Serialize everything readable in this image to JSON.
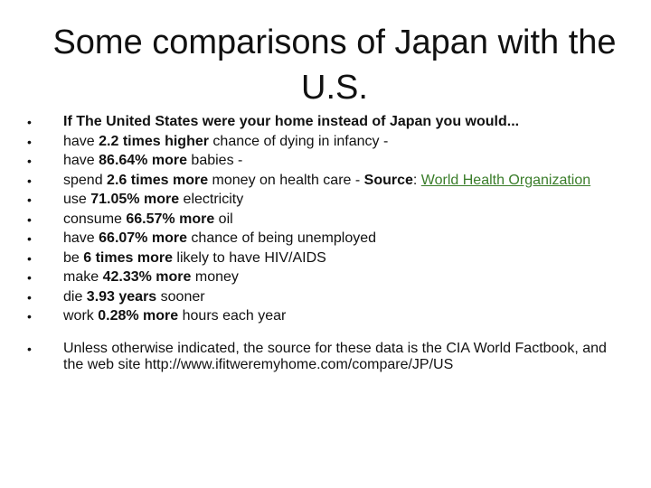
{
  "title": "Some comparisons of Japan with the U.S.",
  "bullets": [
    {
      "parts": [
        {
          "t": "If The United States were your home instead of Japan you would...",
          "b": true
        }
      ]
    },
    {
      "parts": [
        {
          "t": "have "
        },
        {
          "t": "2.2 times higher",
          "b": true
        },
        {
          "t": " chance of dying in infancy -"
        }
      ]
    },
    {
      "parts": [
        {
          "t": "have "
        },
        {
          "t": "86.64% more",
          "b": true
        },
        {
          "t": " babies -"
        }
      ]
    },
    {
      "parts": [
        {
          "t": "spend "
        },
        {
          "t": "2.6 times more",
          "b": true
        },
        {
          "t": " money on health care - "
        },
        {
          "t": "Source",
          "b": true
        },
        {
          "t": ": "
        },
        {
          "t": "World Health Organization",
          "link": true
        }
      ]
    },
    {
      "parts": [
        {
          "t": "use "
        },
        {
          "t": "71.05% more",
          "b": true
        },
        {
          "t": " electricity"
        }
      ]
    },
    {
      "parts": [
        {
          "t": "consume "
        },
        {
          "t": "66.57% more",
          "b": true
        },
        {
          "t": " oil"
        }
      ]
    },
    {
      "parts": [
        {
          "t": "have "
        },
        {
          "t": "66.07% more",
          "b": true
        },
        {
          "t": " chance of being unemployed"
        }
      ]
    },
    {
      "parts": [
        {
          "t": "be "
        },
        {
          "t": "6 times more",
          "b": true
        },
        {
          "t": " likely to have HIV/AIDS"
        }
      ]
    },
    {
      "parts": [
        {
          "t": "make "
        },
        {
          "t": "42.33% more",
          "b": true
        },
        {
          "t": " money"
        }
      ]
    },
    {
      "parts": [
        {
          "t": "die "
        },
        {
          "t": "3.93 years",
          "b": true
        },
        {
          "t": " sooner"
        }
      ]
    },
    {
      "parts": [
        {
          "t": "work "
        },
        {
          "t": "0.28% more",
          "b": true
        },
        {
          "t": " hours each year"
        }
      ]
    },
    {
      "gap": true,
      "parts": [
        {
          "t": "Unless otherwise indicated, the source for these data is the CIA World Factbook, and the web site http://www.ifitweremyhome.com/compare/JP/US"
        }
      ]
    }
  ]
}
